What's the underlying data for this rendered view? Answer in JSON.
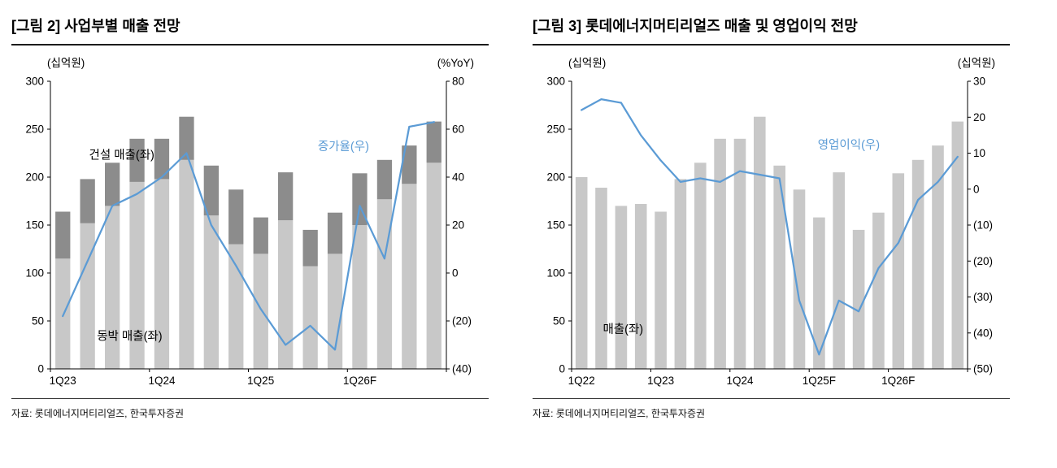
{
  "figures": [
    {
      "title": "[그림 2] 사업부별 매출 전망",
      "source": "자료: 롯데에너지머티리얼즈, 한국투자증권"
    },
    {
      "title": "[그림 3] 롯데에너지머티리얼즈 매출 및 영업이익 전망",
      "source": "자료: 롯데에너지머티리얼즈, 한국투자증권"
    }
  ],
  "colors": {
    "bar_light": "#c8c8c8",
    "bar_dark": "#8c8c8c",
    "line_blue": "#5b9bd5"
  },
  "chart_data": [
    {
      "type": "bar",
      "subtype": "stacked-bar-with-line",
      "title": "[그림 2] 사업부별 매출 전망",
      "legend_position": "in-plot-annotations",
      "grid": false,
      "categories": [
        "1Q23",
        "2Q23",
        "3Q23",
        "4Q23",
        "1Q24",
        "2Q24",
        "3Q24",
        "4Q24",
        "1Q25",
        "2Q25",
        "3Q25",
        "4Q25",
        "1Q26F",
        "2Q26F",
        "3Q26F",
        "4Q26F"
      ],
      "x_ticks": [
        {
          "index": 0,
          "label": "1Q23"
        },
        {
          "index": 4,
          "label": "1Q24"
        },
        {
          "index": 8,
          "label": "1Q25"
        },
        {
          "index": 12,
          "label": "1Q26F"
        }
      ],
      "left_axis": {
        "title": "(십억원)",
        "range": [
          0,
          300
        ],
        "ticks": [
          {
            "value": 0,
            "label": "0"
          },
          {
            "value": 50,
            "label": "50"
          },
          {
            "value": 100,
            "label": "100"
          },
          {
            "value": 150,
            "label": "150"
          },
          {
            "value": 200,
            "label": "200"
          },
          {
            "value": 250,
            "label": "250"
          },
          {
            "value": 300,
            "label": "300"
          }
        ]
      },
      "right_axis": {
        "title": "(%YoY)",
        "range": [
          -40,
          80
        ],
        "ticks": [
          {
            "value": -40,
            "label": "(40)"
          },
          {
            "value": -20,
            "label": "(20)"
          },
          {
            "value": 0,
            "label": "0"
          },
          {
            "value": 20,
            "label": "20"
          },
          {
            "value": 40,
            "label": "40"
          },
          {
            "value": 60,
            "label": "60"
          },
          {
            "value": 80,
            "label": "80"
          }
        ]
      },
      "series": [
        {
          "key": "copper-foil-revenue",
          "name": "동박 매출(좌)",
          "type": "bar",
          "stack": true,
          "axis": "left",
          "color": "#c8c8c8",
          "values": [
            115,
            152,
            170,
            195,
            198,
            218,
            160,
            130,
            120,
            155,
            107,
            120,
            150,
            177,
            193,
            215
          ]
        },
        {
          "key": "construction-revenue",
          "name": "건설 매출(좌)",
          "type": "bar",
          "stack": true,
          "axis": "left",
          "color": "#8c8c8c",
          "values": [
            49,
            46,
            45,
            45,
            42,
            45,
            52,
            57,
            38,
            50,
            38,
            43,
            54,
            41,
            40,
            43
          ]
        },
        {
          "key": "yoy-growth",
          "name": "증가율(우)",
          "type": "line",
          "axis": "right",
          "color": "#5b9bd5",
          "values": [
            -18,
            5,
            28,
            33,
            40,
            50,
            20,
            3,
            -15,
            -30,
            -22,
            -32,
            28,
            6,
            61,
            63
          ]
        }
      ],
      "annotations": [
        {
          "text": "건설 매출(좌)",
          "fx": 0.18,
          "fy": 0.27,
          "color": "#000000"
        },
        {
          "text": "증가율(우)",
          "fx": 0.74,
          "fy": 0.24,
          "color": "#5b9bd5"
        },
        {
          "text": "동박 매출(좌)",
          "fx": 0.2,
          "fy": 0.9,
          "color": "#000000"
        }
      ]
    },
    {
      "type": "bar",
      "subtype": "bar-with-line",
      "title": "[그림 3] 롯데에너지머티리얼즈 매출 및 영업이익 전망",
      "legend_position": "in-plot-annotations",
      "grid": false,
      "categories": [
        "1Q22",
        "2Q22",
        "3Q22",
        "4Q22",
        "1Q23",
        "2Q23",
        "3Q23",
        "4Q23",
        "1Q24",
        "2Q24",
        "3Q24",
        "4Q24",
        "1Q25F",
        "2Q25F",
        "3Q25F",
        "4Q25F",
        "1Q26F",
        "2Q26F",
        "3Q26F",
        "4Q26F"
      ],
      "x_ticks": [
        {
          "index": 0,
          "label": "1Q22"
        },
        {
          "index": 4,
          "label": "1Q23"
        },
        {
          "index": 8,
          "label": "1Q24"
        },
        {
          "index": 12,
          "label": "1Q25F"
        },
        {
          "index": 16,
          "label": "1Q26F"
        }
      ],
      "left_axis": {
        "title": "(십억원)",
        "range": [
          0,
          300
        ],
        "ticks": [
          {
            "value": 0,
            "label": "0"
          },
          {
            "value": 50,
            "label": "50"
          },
          {
            "value": 100,
            "label": "100"
          },
          {
            "value": 150,
            "label": "150"
          },
          {
            "value": 200,
            "label": "200"
          },
          {
            "value": 250,
            "label": "250"
          },
          {
            "value": 300,
            "label": "300"
          }
        ]
      },
      "right_axis": {
        "title": "(십억원)",
        "range": [
          -50,
          30
        ],
        "ticks": [
          {
            "value": -50,
            "label": "(50)"
          },
          {
            "value": -40,
            "label": "(40)"
          },
          {
            "value": -30,
            "label": "(30)"
          },
          {
            "value": -20,
            "label": "(20)"
          },
          {
            "value": -10,
            "label": "(10)"
          },
          {
            "value": 0,
            "label": "0"
          },
          {
            "value": 10,
            "label": "10"
          },
          {
            "value": 20,
            "label": "20"
          },
          {
            "value": 30,
            "label": "30"
          }
        ]
      },
      "series": [
        {
          "key": "revenue",
          "name": "매출(좌)",
          "type": "bar",
          "stack": false,
          "axis": "left",
          "color": "#c8c8c8",
          "values": [
            200,
            189,
            170,
            172,
            164,
            198,
            215,
            240,
            240,
            263,
            212,
            187,
            158,
            205,
            145,
            163,
            204,
            218,
            233,
            258
          ]
        },
        {
          "key": "operating-profit",
          "name": "영업이익(우)",
          "type": "line",
          "axis": "right",
          "color": "#5b9bd5",
          "values": [
            22,
            25,
            24,
            15,
            8,
            2,
            3,
            2,
            5,
            4,
            3,
            -31,
            -46,
            -31,
            -34,
            -22,
            -15,
            -3,
            2,
            9
          ]
        }
      ],
      "annotations": [
        {
          "text": "영업이익(우)",
          "fx": 0.7,
          "fy": 0.235,
          "color": "#5b9bd5"
        },
        {
          "text": "매출(좌)",
          "fx": 0.13,
          "fy": 0.875,
          "color": "#000000"
        }
      ]
    }
  ]
}
